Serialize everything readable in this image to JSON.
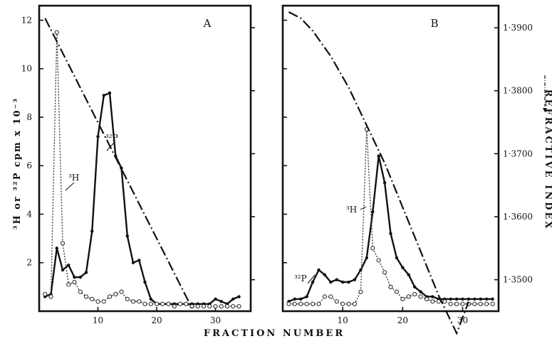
{
  "chart_data": {
    "type": "line",
    "xlabel": "FRACTION NUMBER",
    "ylabel_left": "³H or ³²P cpm x 10⁻³",
    "ylabel_right": "REFRACTIVE INDEX",
    "xlim": [
      0,
      36
    ],
    "ylim_left": [
      0,
      12.6
    ],
    "ylim_right": [
      1.345,
      1.3935
    ],
    "x_ticks": [
      "10",
      "20",
      "30"
    ],
    "y_ticks_left": [
      "2",
      "4",
      "6",
      "8",
      "10",
      "12"
    ],
    "y_ticks_right": [
      "1·3500",
      "1·3600",
      "1·3700",
      "1·3800",
      "1·3900"
    ],
    "panels": [
      {
        "label": "A",
        "series": [
          {
            "name": "³²P",
            "style": "solid-filled",
            "x": [
              1,
              2,
              3,
              4,
              5,
              6,
              7,
              8,
              9,
              10,
              11,
              12,
              13,
              14,
              15,
              16,
              17,
              18,
              19,
              20,
              21,
              22,
              23,
              24,
              25,
              26,
              27,
              28,
              29,
              30,
              31,
              32,
              33,
              34
            ],
            "y": [
              0.6,
              0.7,
              2.6,
              1.7,
              1.9,
              1.4,
              1.4,
              1.6,
              3.3,
              7.2,
              8.9,
              9.0,
              6.4,
              5.9,
              3.1,
              2.0,
              2.1,
              1.2,
              0.5,
              0.3,
              0.3,
              0.3,
              0.3,
              0.3,
              0.3,
              0.3,
              0.3,
              0.3,
              0.3,
              0.5,
              0.4,
              0.3,
              0.5,
              0.6
            ]
          },
          {
            "name": "³H",
            "style": "dotted-open",
            "x": [
              1,
              2,
              3,
              4,
              5,
              6,
              7,
              8,
              9,
              10,
              11,
              12,
              13,
              14,
              15,
              16,
              17,
              18,
              19,
              20,
              21,
              22,
              23,
              24,
              25,
              26,
              27,
              28,
              29,
              30,
              31,
              32,
              33,
              34
            ],
            "y": [
              0.7,
              0.6,
              11.5,
              2.8,
              1.1,
              1.2,
              0.8,
              0.6,
              0.5,
              0.4,
              0.4,
              0.6,
              0.7,
              0.8,
              0.5,
              0.4,
              0.4,
              0.3,
              0.3,
              0.3,
              0.3,
              0.3,
              0.2,
              0.3,
              0.3,
              0.2,
              0.2,
              0.2,
              0.2,
              0.2,
              0.2,
              0.2,
              0.2,
              0.2
            ]
          },
          {
            "name": "",
            "style": "dash-dot",
            "axis": "right",
            "x": [
              1,
              26
            ],
            "y": [
              1.3915,
              1.3455
            ]
          }
        ]
      },
      {
        "label": "B",
        "series": [
          {
            "name": "³²P",
            "style": "solid-filled",
            "x": [
              1,
              2,
              3,
              4,
              5,
              6,
              7,
              8,
              9,
              10,
              11,
              12,
              13,
              14,
              15,
              16,
              17,
              18,
              19,
              20,
              21,
              22,
              23,
              24,
              25,
              26,
              27,
              28,
              29,
              30,
              31,
              32,
              33,
              34,
              35
            ],
            "y": [
              0.4,
              0.5,
              0.5,
              0.6,
              1.2,
              1.7,
              1.5,
              1.2,
              1.3,
              1.2,
              1.2,
              1.3,
              1.7,
              2.2,
              4.1,
              6.4,
              5.3,
              3.2,
              2.2,
              1.8,
              1.5,
              1.0,
              0.8,
              0.6,
              0.6,
              0.5,
              0.5,
              0.5,
              0.5,
              0.5,
              0.5,
              0.5,
              0.5,
              0.5,
              0.5
            ]
          },
          {
            "name": "³H",
            "style": "dotted-open",
            "x": [
              1,
              2,
              3,
              4,
              5,
              6,
              7,
              8,
              9,
              10,
              11,
              12,
              13,
              14,
              15,
              16,
              17,
              18,
              19,
              20,
              21,
              22,
              23,
              24,
              25,
              26,
              27,
              28,
              29,
              30,
              31,
              32,
              33,
              34,
              35
            ],
            "y": [
              0.3,
              0.3,
              0.3,
              0.3,
              0.3,
              0.3,
              0.6,
              0.6,
              0.4,
              0.3,
              0.3,
              0.3,
              0.8,
              7.5,
              2.6,
              2.1,
              1.6,
              1.0,
              0.8,
              0.5,
              0.6,
              0.7,
              0.6,
              0.5,
              0.4,
              0.4,
              0.4,
              0.3,
              0.3,
              0.3,
              0.3,
              0.3,
              0.3,
              0.3,
              0.3
            ]
          },
          {
            "name": "",
            "style": "dash-dot",
            "axis": "right",
            "x": [
              1,
              3,
              5,
              8,
              11,
              14,
              17,
              20,
              23,
              26,
              29,
              31
            ],
            "y": [
              1.3925,
              1.3915,
              1.3895,
              1.3855,
              1.3805,
              1.3745,
              1.3685,
              1.3615,
              1.3545,
              1.3475,
              1.3415,
              1.3465
            ]
          }
        ]
      }
    ]
  }
}
